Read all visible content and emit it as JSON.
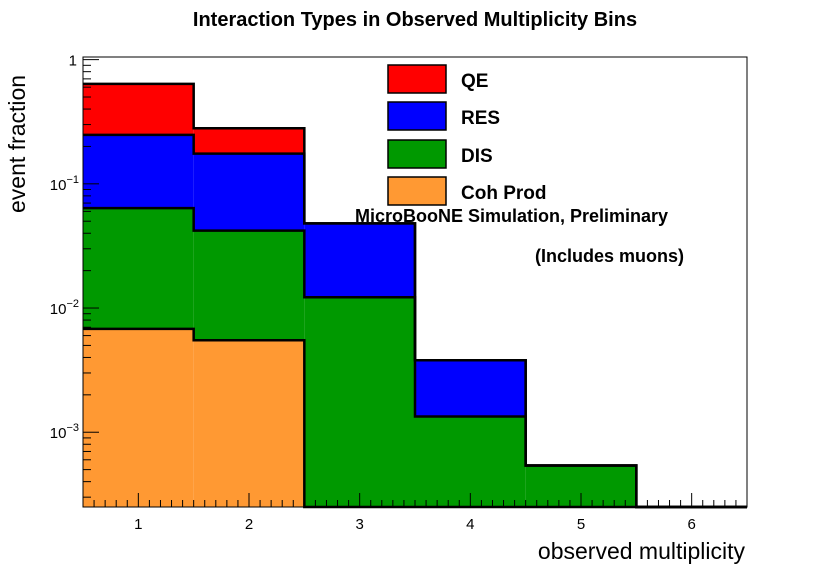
{
  "chart_data": {
    "type": "bar",
    "subtype": "stacked-histogram",
    "title": "Interaction Types in Observed Multiplicity Bins",
    "xlabel": "observed multiplicity",
    "ylabel": "event fraction",
    "yscale": "log",
    "xlim": [
      0.5,
      6.5
    ],
    "ylim": [
      0.00025,
      1.05
    ],
    "bin_edges": [
      0.5,
      1.5,
      2.5,
      3.5,
      4.5,
      5.5,
      6.5
    ],
    "categories": [
      "1",
      "2",
      "3",
      "4",
      "5",
      "6"
    ],
    "x_ticks": [
      "1",
      "2",
      "3",
      "4",
      "5",
      "6"
    ],
    "y_ticks": [
      {
        "value": 1,
        "base": "1",
        "exp": ""
      },
      {
        "value": 0.1,
        "base": "10",
        "exp": "−1"
      },
      {
        "value": 0.01,
        "base": "10",
        "exp": "−2"
      },
      {
        "value": 0.001,
        "base": "10",
        "exp": "−3"
      }
    ],
    "series": [
      {
        "name": "Coh Prod",
        "color": "#ff9933",
        "values": [
          0.0068,
          0.0055,
          0,
          0,
          0,
          0
        ]
      },
      {
        "name": "DIS",
        "color": "#009900",
        "values": [
          0.057,
          0.0365,
          0.0122,
          0.00134,
          0.00054,
          0
        ]
      },
      {
        "name": "RES",
        "color": "#0000ff",
        "values": [
          0.184,
          0.133,
          0.0358,
          0.00246,
          0,
          0
        ]
      },
      {
        "name": "QE",
        "color": "#ff0000",
        "values": [
          0.39,
          0.105,
          0,
          0,
          0,
          0
        ]
      }
    ],
    "stack_totals": [
      0.638,
      0.28,
      0.048,
      0.0038,
      0.00054,
      0
    ],
    "legend": [
      "QE",
      "RES",
      "DIS",
      "Coh Prod"
    ],
    "legend_position": "top-right",
    "annotations": [
      "MicroBooNE Simulation, Preliminary",
      "(Includes muons)"
    ]
  }
}
